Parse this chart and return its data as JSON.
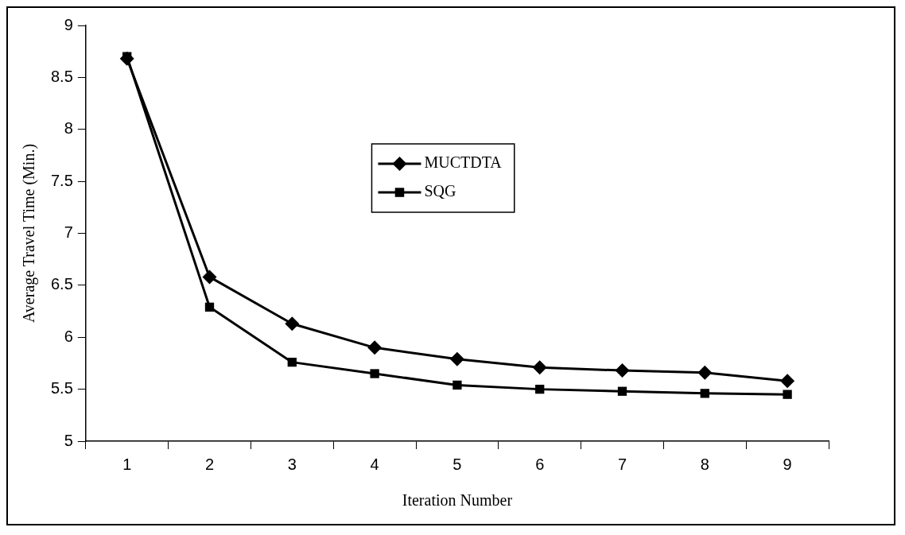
{
  "chart_data": {
    "type": "line",
    "xlabel": "Iteration Number",
    "ylabel": "Average Travel Time (Min.)",
    "categories": [
      "1",
      "2",
      "3",
      "4",
      "5",
      "6",
      "7",
      "8",
      "9"
    ],
    "series": [
      {
        "name": "MUCTDTA",
        "color": "#000000",
        "marker": "diamond",
        "values": [
          8.68,
          6.58,
          6.13,
          5.9,
          5.79,
          5.71,
          5.68,
          5.66,
          5.58
        ]
      },
      {
        "name": "SQG",
        "color": "#000000",
        "marker": "square",
        "values": [
          8.7,
          6.29,
          5.76,
          5.65,
          5.54,
          5.5,
          5.48,
          5.46,
          5.45
        ]
      }
    ],
    "ylim": [
      5,
      9
    ],
    "yticks": [
      5,
      5.5,
      6,
      6.5,
      7,
      7.5,
      8,
      8.5,
      9
    ],
    "grid": false,
    "legend": "top",
    "line_style": "solid"
  }
}
